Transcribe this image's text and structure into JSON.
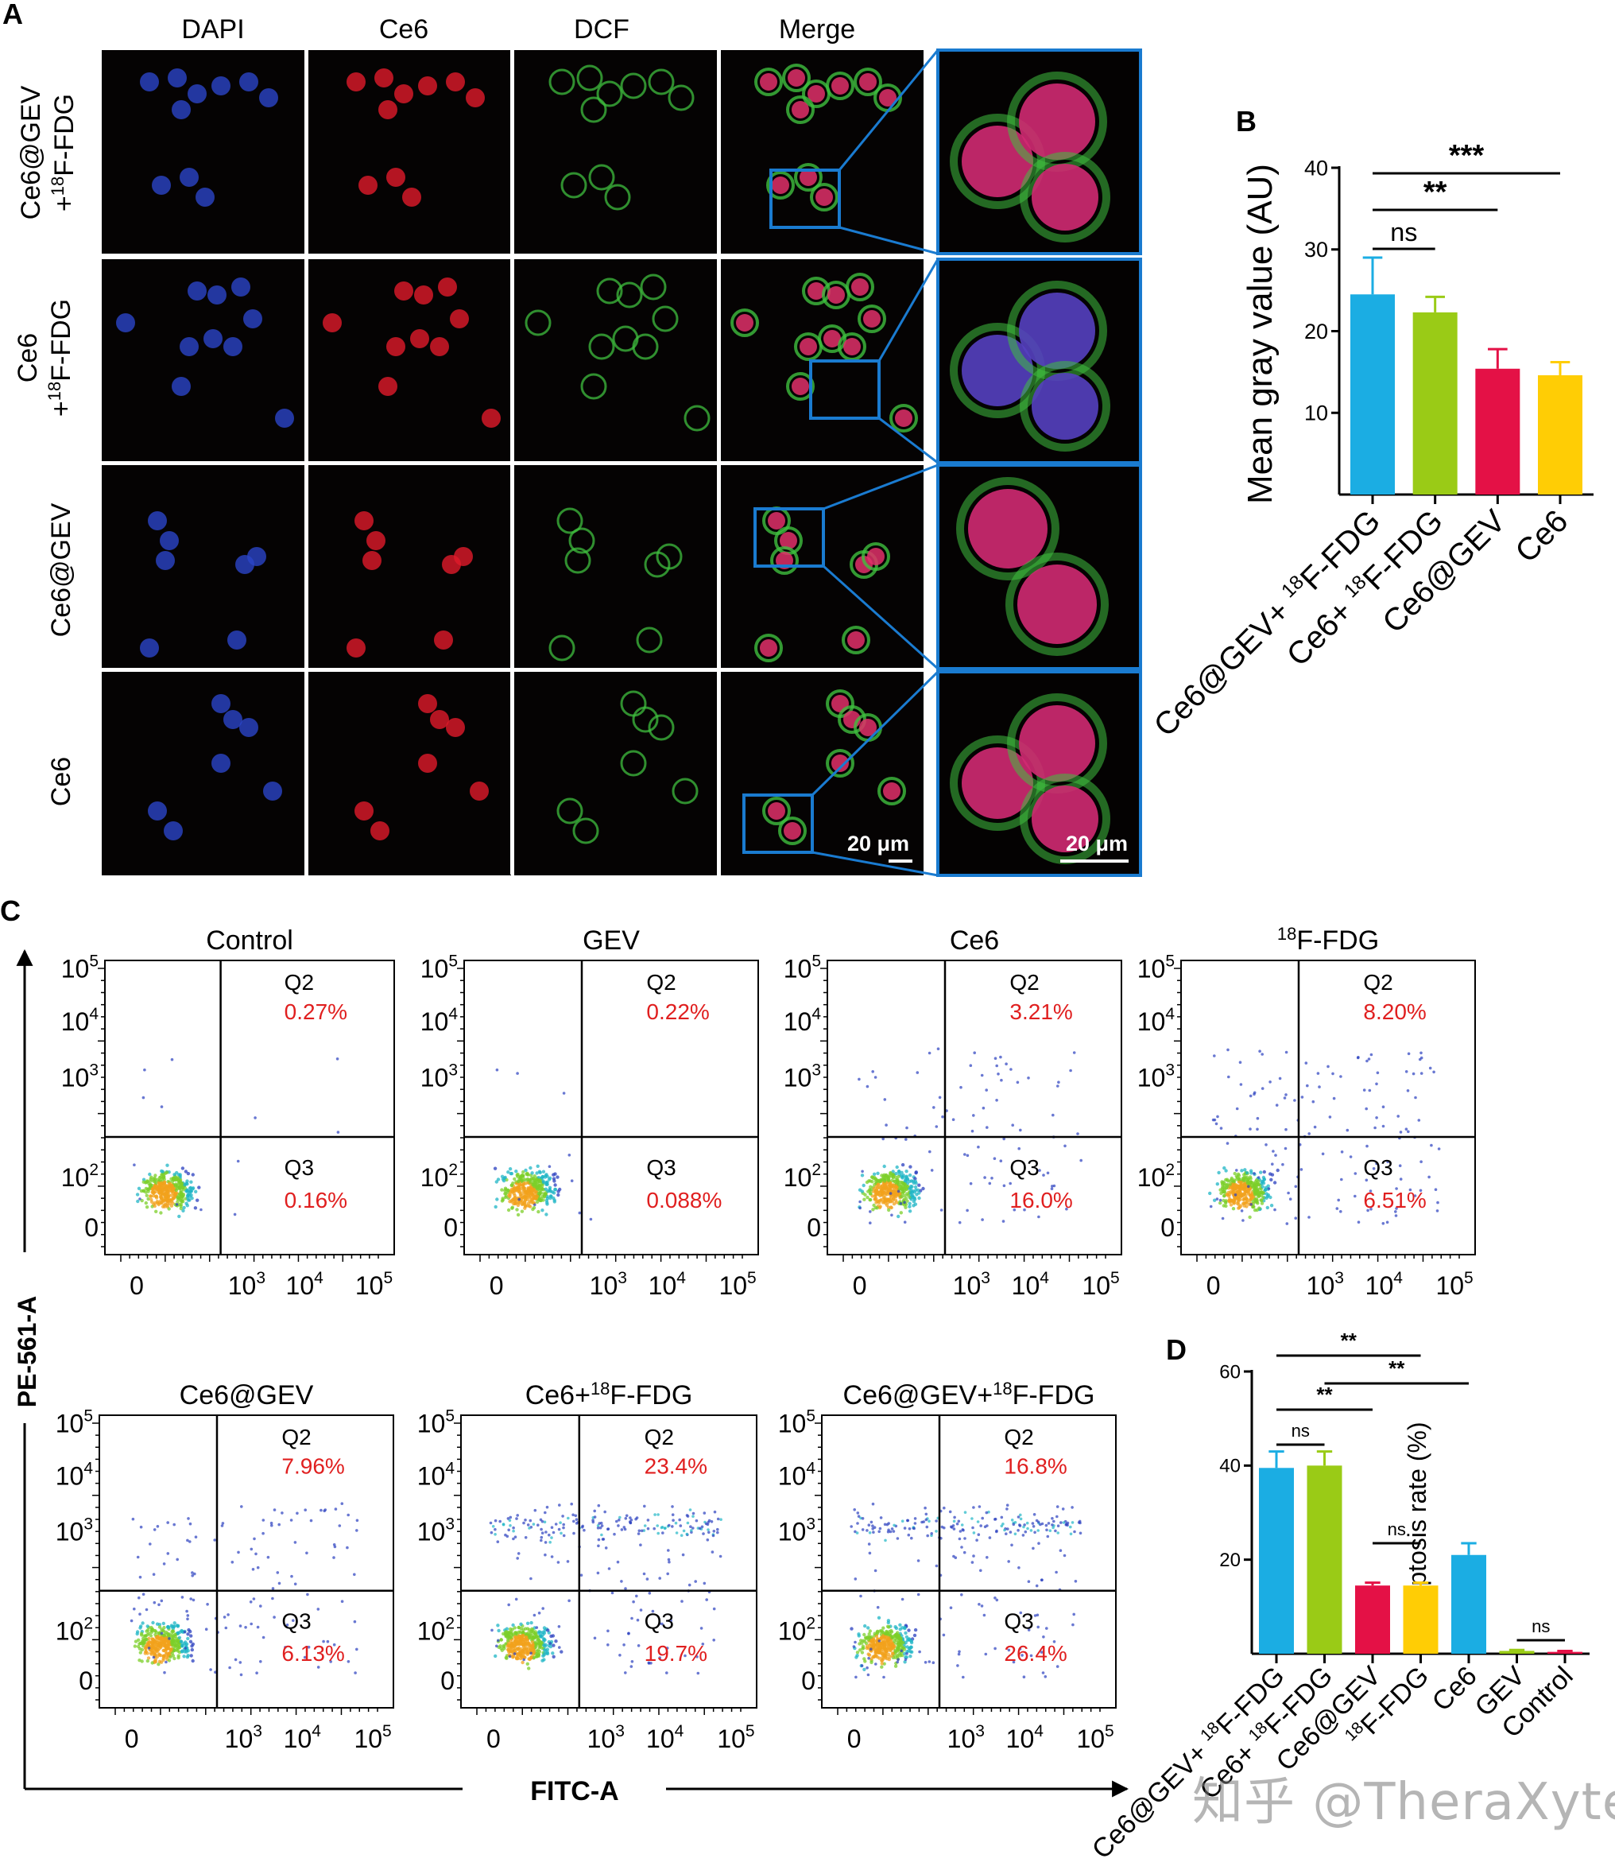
{
  "panel_letters": {
    "a": "A",
    "b": "B",
    "c": "C",
    "d": "D"
  },
  "micro": {
    "columns": [
      "DAPI",
      "Ce6",
      "DCF",
      "Merge"
    ],
    "rows": [
      {
        "line1": "Ce6@GEV",
        "line2_pre": "+",
        "line2_sup": "18",
        "line2_post": "F-FDG"
      },
      {
        "line1": "Ce6",
        "line2_pre": "+",
        "line2_sup": "18",
        "line2_post": "F-FDG"
      },
      {
        "line1": "Ce6@GEV",
        "line2_pre": "",
        "line2_sup": "",
        "line2_post": ""
      },
      {
        "line1": "Ce6",
        "line2_pre": "",
        "line2_sup": "",
        "line2_post": ""
      }
    ],
    "scale_bar_label": "20 μm",
    "colors": {
      "dapi": "#2a45c8",
      "ce6": "#e01a2a",
      "dcf": "#3fbf3f",
      "merge_nucleus": "#e0306a",
      "zoom_box": "#1a7bd0"
    }
  },
  "chart_data": [
    {
      "type": "bar",
      "panel": "B",
      "ylabel": "Mean gray value (AU)",
      "ylim": [
        0,
        40
      ],
      "yticks": [
        10,
        20,
        30,
        40
      ],
      "categories": [
        "Ce6@GEV+ 18F-FDG",
        "Ce6+ 18F-FDG",
        "Ce6@GEV",
        "Ce6"
      ],
      "category_parts": [
        {
          "pre": "Ce6@GEV+ ",
          "sup": "18",
          "post": "F-FDG"
        },
        {
          "pre": "Ce6+ ",
          "sup": "18",
          "post": "F-FDG"
        },
        {
          "pre": "Ce6@GEV",
          "sup": "",
          "post": ""
        },
        {
          "pre": "Ce6",
          "sup": "",
          "post": ""
        }
      ],
      "values": [
        24.5,
        22.3,
        15.4,
        14.6
      ],
      "errors": [
        4.5,
        1.9,
        2.4,
        1.6
      ],
      "colors": [
        "#1bade3",
        "#9acb16",
        "#e41146",
        "#ffcd05"
      ],
      "significance": [
        {
          "from": 0,
          "to": 1,
          "label": "ns"
        },
        {
          "from": 0,
          "to": 2,
          "label": "**"
        },
        {
          "from": 0,
          "to": 3,
          "label": "***"
        }
      ]
    },
    {
      "type": "scatter",
      "panel": "C",
      "xlabel": "FITC-A",
      "ylabel": "PE-561-A",
      "x_ticks": [
        "0",
        "10^3",
        "10^4",
        "10^5"
      ],
      "y_ticks": [
        "0",
        "10^2",
        "10^3",
        "10^4",
        "10^5"
      ],
      "quadrant_labels": {
        "q2": "Q2",
        "q3": "Q3"
      },
      "plots": [
        {
          "title": "Control",
          "title_sup": "",
          "title_post": "",
          "q2": "0.27%",
          "q3": "0.16%"
        },
        {
          "title": "GEV",
          "title_sup": "",
          "title_post": "",
          "q2": "0.22%",
          "q3": "0.088%"
        },
        {
          "title": "Ce6",
          "title_sup": "",
          "title_post": "",
          "q2": "3.21%",
          "q3": "16.0%"
        },
        {
          "title": "",
          "title_sup": "18",
          "title_post": "F-FDG",
          "q2": "8.20%",
          "q3": "6.51%"
        },
        {
          "title": "Ce6@GEV",
          "title_sup": "",
          "title_post": "",
          "q2": "7.96%",
          "q3": "6.13%"
        },
        {
          "title": "Ce6+",
          "title_sup": "18",
          "title_post": "F-FDG",
          "q2": "23.4%",
          "q3": "19.7%"
        },
        {
          "title": "Ce6@GEV+",
          "title_sup": "18",
          "title_post": "F-FDG",
          "q2": "16.8%",
          "q3": "26.4%"
        }
      ]
    },
    {
      "type": "bar",
      "panel": "D",
      "ylabel": "Apoptosis rate (%)",
      "ylim": [
        0,
        60
      ],
      "yticks": [
        20,
        40,
        60
      ],
      "categories": [
        "Ce6@GEV+ 18F-FDG",
        "Ce6+ 18F-FDG",
        "Ce6@GEV",
        "18F-FDG",
        "Ce6",
        "GEV",
        "Control"
      ],
      "category_parts": [
        {
          "pre": "Ce6@GEV+ ",
          "sup": "18",
          "post": "F-FDG"
        },
        {
          "pre": "Ce6+ ",
          "sup": "18",
          "post": "F-FDG"
        },
        {
          "pre": "Ce6@GEV",
          "sup": "",
          "post": ""
        },
        {
          "pre": "",
          "sup": "18",
          "post": "F-FDG"
        },
        {
          "pre": "Ce6",
          "sup": "",
          "post": ""
        },
        {
          "pre": "GEV",
          "sup": "",
          "post": ""
        },
        {
          "pre": "Control",
          "sup": "",
          "post": ""
        }
      ],
      "values": [
        39.5,
        40.0,
        14.5,
        14.5,
        21.0,
        0.6,
        0.4
      ],
      "errors": [
        3.5,
        3.0,
        0.6,
        0.6,
        2.5,
        0.2,
        0.2
      ],
      "colors": [
        "#1bade3",
        "#9acb16",
        "#e41146",
        "#ffcd05",
        "#1bade3",
        "#9acb16",
        "#e41146"
      ],
      "significance": [
        {
          "from": 0,
          "to": 1,
          "label": "ns"
        },
        {
          "from": 0,
          "to": 2,
          "label": "**"
        },
        {
          "from": 0,
          "to": 3,
          "label": "**"
        },
        {
          "from": 1,
          "to": 4,
          "label": "**"
        },
        {
          "from": 2,
          "to": 3,
          "label": "ns"
        },
        {
          "from": 5,
          "to": 6,
          "label": "ns"
        }
      ]
    }
  ],
  "watermark": "知乎 @TheraXyte"
}
